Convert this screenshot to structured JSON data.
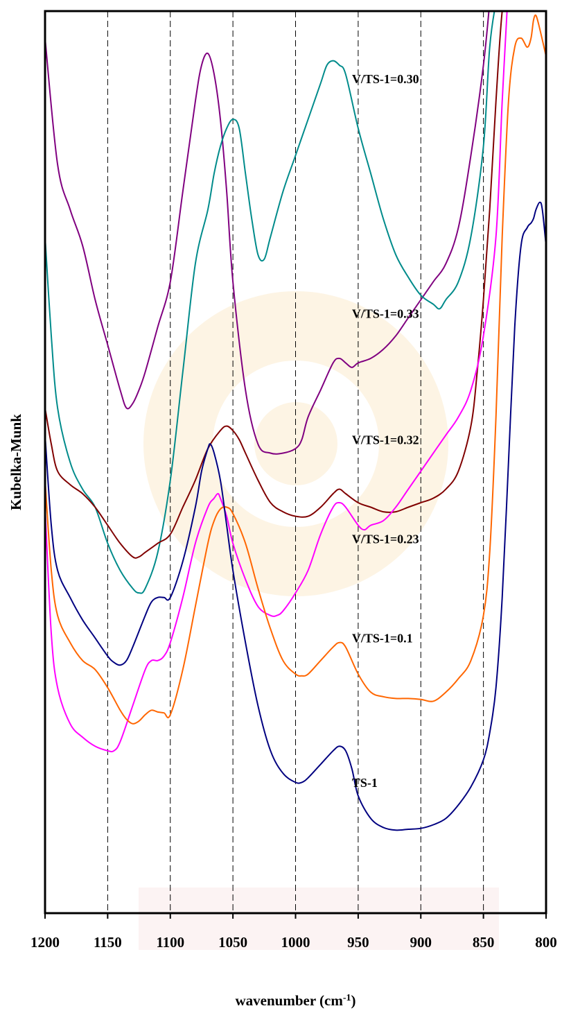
{
  "chart_data": {
    "type": "line",
    "title": "",
    "xlabel": "wavenumber (cm",
    "xlabel_superscript": "-1",
    "xlabel_suffix": ")",
    "ylabel": "Kubelka-Munk",
    "xlim": [
      1200,
      800
    ],
    "ylim": [
      0,
      100
    ],
    "x_reversed": true,
    "y_tick_labels": false,
    "grid": "vertical dashed",
    "x_ticks": [
      1200,
      1150,
      1100,
      1050,
      1000,
      950,
      900,
      850,
      800
    ],
    "legend": "inline labels at right of curves",
    "series": [
      {
        "name": "V/TS-1=0.30",
        "color": "#800080",
        "x": [
          1200,
          1190,
          1180,
          1170,
          1160,
          1150,
          1140,
          1135,
          1130,
          1125,
          1120,
          1110,
          1100,
          1090,
          1080,
          1075,
          1070,
          1065,
          1060,
          1055,
          1050,
          1040,
          1030,
          1020,
          1010,
          1000,
          995,
          990,
          980,
          970,
          965,
          960,
          955,
          950,
          940,
          930,
          920,
          910,
          900,
          890,
          880,
          870,
          860,
          850,
          845
        ],
        "y": [
          97,
          83,
          78,
          74,
          68,
          63,
          58,
          56,
          56.5,
          58,
          60,
          65,
          70,
          80,
          90,
          94,
          95.3,
          93,
          88,
          80,
          70,
          58,
          52,
          51,
          51,
          51.5,
          52.5,
          55,
          58,
          61,
          61.5,
          61,
          60.5,
          61,
          61.5,
          62.5,
          64,
          66,
          68,
          70,
          72,
          76,
          84,
          94,
          101
        ]
      },
      {
        "name": "V/TS-1=0.33",
        "color": "#008B8B",
        "x": [
          1200,
          1195,
          1190,
          1180,
          1170,
          1160,
          1150,
          1140,
          1130,
          1125,
          1120,
          1110,
          1100,
          1090,
          1080,
          1070,
          1065,
          1060,
          1055,
          1050,
          1045,
          1040,
          1035,
          1030,
          1025,
          1020,
          1010,
          1000,
          990,
          980,
          975,
          970,
          965,
          960,
          950,
          940,
          930,
          920,
          910,
          900,
          890,
          885,
          880,
          870,
          860,
          850,
          845,
          840,
          837
        ],
        "y": [
          75,
          64,
          56,
          50,
          47,
          45,
          41,
          38,
          36,
          35.5,
          36,
          40,
          48,
          60,
          72,
          78,
          82,
          85,
          87,
          88,
          87,
          82,
          77,
          73,
          72.5,
          75,
          80,
          84,
          88,
          92,
          94,
          94.5,
          94,
          93,
          87,
          82,
          77,
          73,
          70.5,
          68.5,
          67.5,
          67,
          68,
          70,
          75,
          85,
          96,
          101,
          103
        ]
      },
      {
        "name": "V/TS-1=0.32",
        "color": "#800000",
        "x": [
          1200,
          1195,
          1190,
          1180,
          1170,
          1160,
          1150,
          1140,
          1130,
          1125,
          1120,
          1110,
          1100,
          1090,
          1080,
          1070,
          1060,
          1055,
          1050,
          1045,
          1040,
          1030,
          1020,
          1010,
          1000,
          990,
          980,
          970,
          965,
          960,
          950,
          940,
          930,
          920,
          910,
          900,
          890,
          880,
          870,
          860,
          855,
          850,
          845,
          840,
          835,
          830
        ],
        "y": [
          56,
          52,
          49,
          47.5,
          46.5,
          45,
          43,
          41,
          39.5,
          39.5,
          40,
          41,
          42,
          45,
          48,
          51.5,
          53.5,
          54,
          53.5,
          52.5,
          51,
          48,
          45.5,
          44.5,
          44,
          44,
          45,
          46.5,
          47,
          46.5,
          45.5,
          45,
          44.5,
          44.5,
          45,
          45.5,
          46,
          47,
          49,
          54,
          60,
          68,
          78,
          90,
          100,
          103
        ]
      },
      {
        "name": "V/TS-1=0.23",
        "color": "#FF00FF",
        "x": [
          1200,
          1195,
          1190,
          1180,
          1170,
          1160,
          1150,
          1145,
          1140,
          1130,
          1120,
          1115,
          1110,
          1105,
          1100,
          1090,
          1080,
          1070,
          1065,
          1062,
          1060,
          1055,
          1050,
          1040,
          1030,
          1020,
          1015,
          1010,
          1000,
          990,
          980,
          970,
          965,
          960,
          950,
          945,
          940,
          930,
          920,
          910,
          900,
          890,
          880,
          870,
          860,
          850,
          840,
          835,
          830
        ],
        "y": [
          45,
          31,
          25,
          21,
          19.5,
          18.5,
          18,
          18,
          19,
          23,
          27,
          28,
          28,
          28.5,
          30,
          35,
          41,
          45,
          46,
          46.5,
          46,
          44,
          41,
          37,
          34,
          33,
          33,
          33.5,
          35.5,
          38,
          42,
          45,
          45.5,
          45,
          43,
          42.5,
          43,
          43.5,
          45,
          47,
          49,
          51,
          53,
          55,
          58,
          64,
          75,
          90,
          103
        ]
      },
      {
        "name": "V/TS-1=0.1",
        "color": "#FF6600",
        "x": [
          1200,
          1195,
          1190,
          1180,
          1170,
          1160,
          1150,
          1140,
          1135,
          1130,
          1125,
          1120,
          1115,
          1110,
          1105,
          1100,
          1090,
          1080,
          1070,
          1065,
          1060,
          1055,
          1050,
          1040,
          1030,
          1020,
          1010,
          1000,
          995,
          990,
          980,
          970,
          965,
          960,
          950,
          940,
          930,
          920,
          910,
          900,
          890,
          880,
          870,
          860,
          850,
          845,
          840,
          835,
          830,
          825,
          820,
          815,
          812,
          810,
          808,
          805,
          800
        ],
        "y": [
          48,
          38,
          33,
          30,
          28,
          27,
          25,
          22.5,
          21.5,
          21,
          21.3,
          22,
          22.5,
          22.3,
          22.2,
          22,
          27,
          34,
          41,
          43.5,
          44.8,
          45,
          44.3,
          41,
          36,
          31.5,
          28,
          26.5,
          26.3,
          26.5,
          28,
          29.5,
          30,
          29.5,
          26.5,
          24.5,
          24,
          23.8,
          23.8,
          23.7,
          23.5,
          24.5,
          26,
          28,
          33,
          40,
          55,
          75,
          90,
          96,
          97,
          96,
          97,
          99,
          99.5,
          98,
          95
        ]
      },
      {
        "name": "TS-1",
        "color": "#000080",
        "x": [
          1200,
          1195,
          1190,
          1180,
          1170,
          1160,
          1150,
          1145,
          1140,
          1135,
          1130,
          1120,
          1115,
          1110,
          1105,
          1100,
          1090,
          1080,
          1075,
          1070,
          1068,
          1065,
          1060,
          1055,
          1050,
          1040,
          1030,
          1020,
          1010,
          1000,
          995,
          990,
          980,
          970,
          965,
          960,
          955,
          950,
          940,
          930,
          920,
          910,
          900,
          890,
          880,
          870,
          860,
          850,
          845,
          840,
          835,
          830,
          825,
          820,
          815,
          812,
          810,
          808,
          805,
          803,
          800
        ],
        "y": [
          53,
          43,
          38,
          35,
          32.5,
          30.5,
          28.5,
          27.8,
          27.5,
          28,
          29.5,
          33,
          34.5,
          35,
          35,
          35,
          39,
          45,
          49,
          51.5,
          52,
          51,
          48,
          43,
          38,
          30,
          23,
          18,
          15.5,
          14.5,
          14.5,
          15,
          16.5,
          18,
          18.5,
          18,
          16,
          13,
          10.5,
          9.5,
          9.2,
          9.3,
          9.4,
          9.8,
          10.5,
          12,
          14,
          17,
          20,
          25,
          35,
          50,
          65,
          74,
          76,
          76.5,
          77,
          78,
          78.8,
          78,
          74
        ]
      }
    ],
    "annotations": [
      {
        "text": "V/TS-1=0.30",
        "x": 955,
        "y": 92
      },
      {
        "text": "V/TS-1=0.33",
        "x": 955,
        "y": 66
      },
      {
        "text": "V/TS-1=0.32",
        "x": 955,
        "y": 52
      },
      {
        "text": "V/TS-1=0.23",
        "x": 955,
        "y": 41
      },
      {
        "text": "V/TS-1=0.1",
        "x": 955,
        "y": 30
      },
      {
        "text": "TS-1",
        "x": 955,
        "y": 14
      }
    ]
  }
}
